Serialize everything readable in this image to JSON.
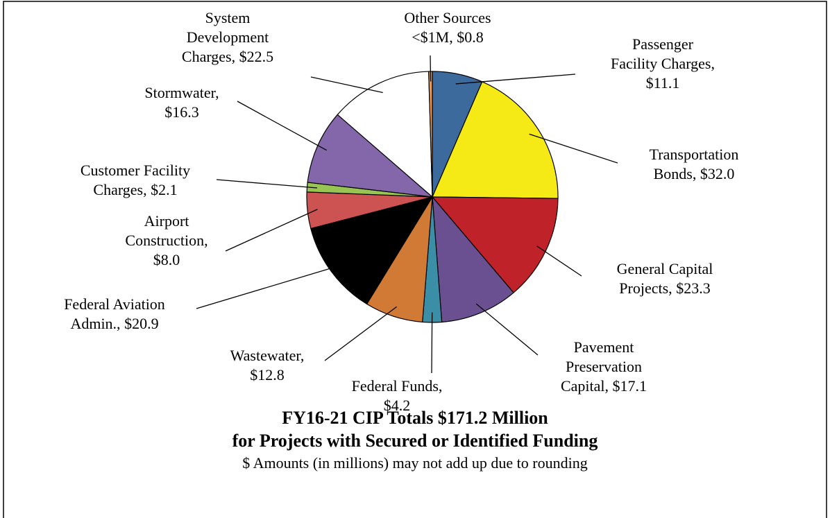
{
  "chart_data": {
    "type": "pie",
    "title": "FY16-21 CIP Totals $171.2 Million",
    "subtitle": "for Projects with Secured or Identified Funding",
    "note": "$ Amounts (in millions) may not add up due to rounding",
    "categories": [
      "Passenger Facility Charges,",
      "Transportation Bonds,",
      "General Capital Projects,",
      "Pavement Preservation Capital,",
      "Federal Funds,",
      "Wastewater,",
      "Federal Aviation Admin.,",
      "Airport Construction,",
      "Customer Facility Charges,",
      "Stormwater,",
      "System Development Charges,",
      "Other Sources <$1M,"
    ],
    "values": [
      11.1,
      32.0,
      23.3,
      17.1,
      4.2,
      12.8,
      20.9,
      8.0,
      2.1,
      16.3,
      22.5,
      0.8
    ],
    "value_labels": [
      "$11.1",
      "$32.0",
      "$23.3",
      "$17.1",
      "$4.2",
      "$12.8",
      "$20.9",
      "$8.0",
      "$2.1",
      "$16.3",
      "$22.5",
      "$0.8"
    ],
    "colors": [
      "#3d6a9d",
      "#f5ea16",
      "#c0222a",
      "#6a5090",
      "#3a8fa6",
      "#d07a35",
      "#000000",
      "#cd5353",
      "#98c454",
      "#8467ab",
      "#ffffff",
      "#f39447"
    ]
  }
}
